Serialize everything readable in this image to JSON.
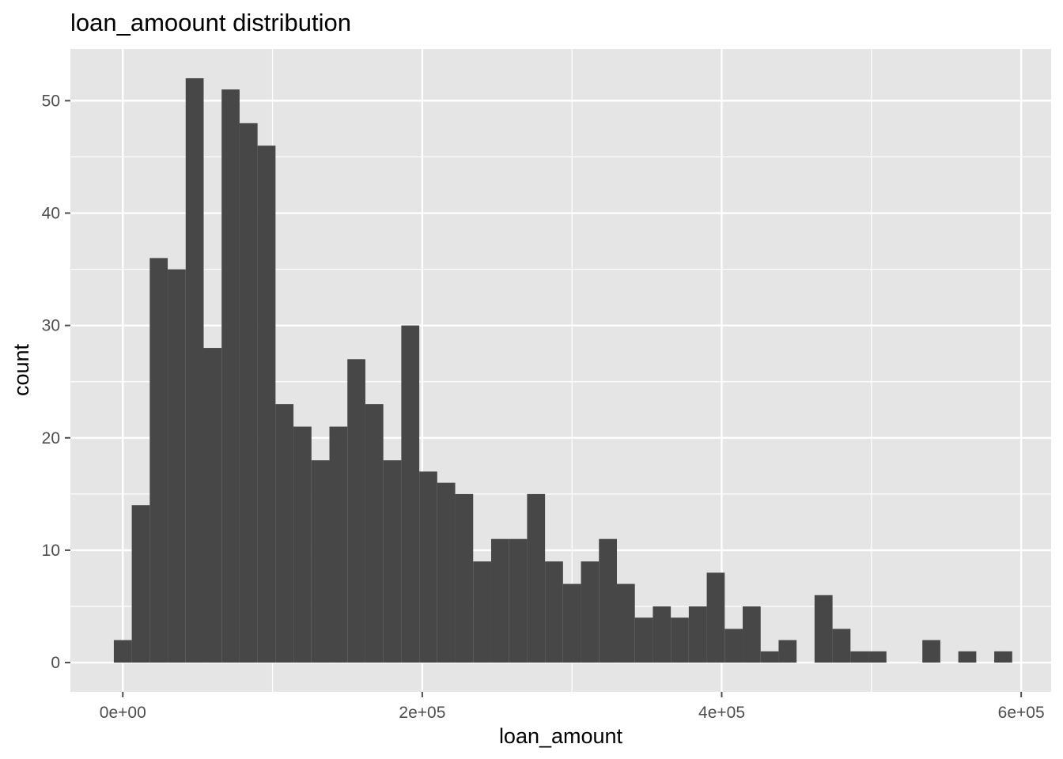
{
  "chart_data": {
    "type": "bar",
    "title": "loan_amoount distribution",
    "xlabel": "loan_amount",
    "ylabel": "count",
    "xlim": [
      -35000,
      620000
    ],
    "ylim": [
      -2.6,
      54.6
    ],
    "x_ticks": [
      {
        "value": 0,
        "label": "0e+00"
      },
      {
        "value": 200000,
        "label": "2e+05"
      },
      {
        "value": 400000,
        "label": "4e+05"
      },
      {
        "value": 600000,
        "label": "6e+05"
      }
    ],
    "y_ticks": [
      {
        "value": 0,
        "label": "0"
      },
      {
        "value": 10,
        "label": "10"
      },
      {
        "value": 20,
        "label": "20"
      },
      {
        "value": 30,
        "label": "30"
      },
      {
        "value": 40,
        "label": "40"
      },
      {
        "value": 50,
        "label": "50"
      }
    ],
    "bin_start": -6000,
    "bin_width": 12000,
    "counts": [
      2,
      14,
      36,
      35,
      52,
      28,
      51,
      48,
      46,
      23,
      21,
      18,
      21,
      27,
      23,
      18,
      30,
      17,
      16,
      15,
      9,
      11,
      11,
      15,
      9,
      7,
      9,
      11,
      7,
      4,
      5,
      4,
      5,
      8,
      3,
      5,
      1,
      2,
      0,
      6,
      3,
      1,
      1,
      0,
      0,
      2,
      0,
      1,
      0,
      1
    ],
    "grid": true,
    "colors": {
      "panel_bg": "#e5e5e5",
      "grid": "#ffffff",
      "bar_fill": "#474747",
      "tick": "#4d4d4d"
    }
  }
}
